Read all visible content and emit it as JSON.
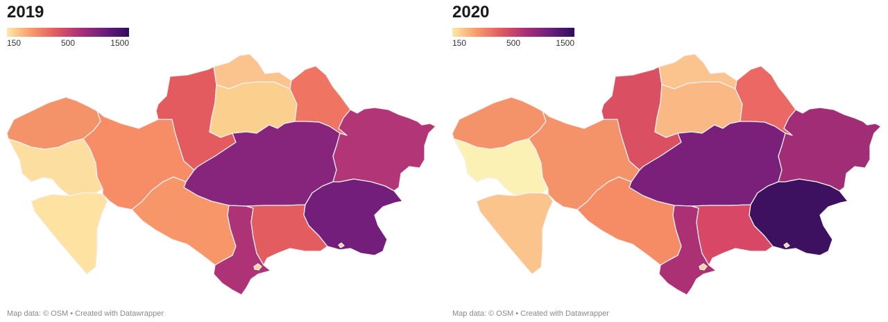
{
  "legend": {
    "labels": [
      "150",
      "500",
      "1500"
    ],
    "gradient": [
      "#fce8a8",
      "#f79a6b",
      "#e05a60",
      "#a83078",
      "#6b1f7c",
      "#2e0d5c"
    ]
  },
  "credit": "Map data: © OSM • Created with Datawrapper",
  "maps": [
    {
      "year": "2019",
      "region_colors": {
        "west": "#f4926a",
        "atyrau": "#fcdfa0",
        "mangystau": "#fde2a1",
        "aktobe": "#f78d66",
        "kostanay": "#e35a5f",
        "north": "#fbc48e",
        "akmola": "#fbd08f",
        "pavlodar": "#ef7562",
        "karaganda": "#87247c",
        "east": "#b23677",
        "kyzylorda": "#f79668",
        "turkestan": "#ad3276",
        "zhambyl": "#e35c5f",
        "almaty": "#731e7b"
      }
    },
    {
      "year": "2020",
      "region_colors": {
        "west": "#f4926a",
        "atyrau": "#fcf1b4",
        "mangystau": "#fbc48c",
        "aktobe": "#f4926a",
        "kostanay": "#db4f63",
        "north": "#fbc48e",
        "akmola": "#f9b884",
        "pavlodar": "#eb6864",
        "karaganda": "#7a207b",
        "east": "#a12d77",
        "kyzylorda": "#f58c66",
        "turkestan": "#ab3174",
        "zhambyl": "#d84765",
        "almaty": "#3d1060"
      }
    }
  ]
}
